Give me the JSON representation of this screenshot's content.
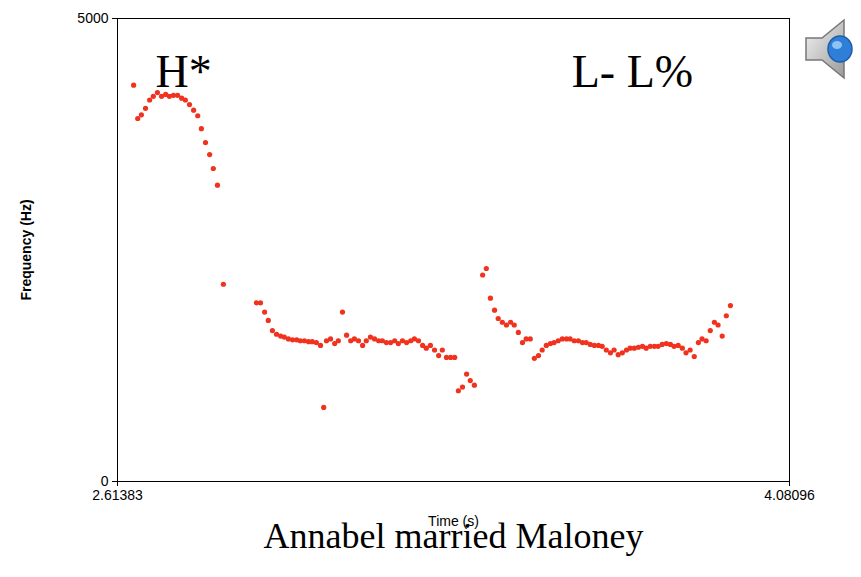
{
  "chart_data": {
    "type": "scatter",
    "x_label": "Time (s)",
    "y_label": "Frequency (Hz)",
    "caption": "Annabel married Maloney",
    "xlim": [
      2.61383,
      4.08096
    ],
    "xticks": [
      2.61383,
      4.08096
    ],
    "ylim": [
      0,
      5000
    ],
    "yticks": [
      0,
      5000
    ],
    "color": "#f0321e",
    "marker": "circle",
    "annotations": [
      {
        "text": "H*",
        "x": 2.758,
        "y": 4420
      },
      {
        "text": "L- L%",
        "x": 3.738,
        "y": 4420
      }
    ],
    "x": [
      2.649,
      2.658,
      2.666,
      2.675,
      2.684,
      2.692,
      2.701,
      2.71,
      2.719,
      2.727,
      2.736,
      2.745,
      2.754,
      2.762,
      2.771,
      2.78,
      2.789,
      2.797,
      2.806,
      2.815,
      2.823,
      2.832,
      2.845,
      2.917,
      2.926,
      2.935,
      2.943,
      2.952,
      2.961,
      2.97,
      2.978,
      2.987,
      2.996,
      3.005,
      3.013,
      3.022,
      3.031,
      3.039,
      3.048,
      3.057,
      3.064,
      3.07,
      3.079,
      3.088,
      3.096,
      3.105,
      3.114,
      3.123,
      3.131,
      3.14,
      3.149,
      3.157,
      3.166,
      3.175,
      3.184,
      3.192,
      3.201,
      3.21,
      3.219,
      3.227,
      3.236,
      3.245,
      3.254,
      3.262,
      3.271,
      3.28,
      3.288,
      3.297,
      3.306,
      3.315,
      3.323,
      3.332,
      3.341,
      3.35,
      3.358,
      3.367,
      3.376,
      3.384,
      3.393,
      3.411,
      3.419,
      3.428,
      3.437,
      3.445,
      3.454,
      3.463,
      3.472,
      3.48,
      3.489,
      3.498,
      3.506,
      3.515,
      3.524,
      3.533,
      3.541,
      3.55,
      3.559,
      3.567,
      3.576,
      3.585,
      3.594,
      3.602,
      3.611,
      3.62,
      3.629,
      3.637,
      3.646,
      3.655,
      3.664,
      3.672,
      3.681,
      3.69,
      3.698,
      3.707,
      3.716,
      3.725,
      3.733,
      3.742,
      3.751,
      3.76,
      3.768,
      3.777,
      3.786,
      3.794,
      3.803,
      3.812,
      3.821,
      3.829,
      3.838,
      3.847,
      3.855,
      3.864,
      3.873,
      3.882,
      3.89,
      3.899,
      3.908,
      3.917,
      3.925,
      3.934,
      3.943,
      3.952
    ],
    "values": [
      4280,
      3920,
      3960,
      4030,
      4120,
      4160,
      4200,
      4160,
      4180,
      4160,
      4170,
      4170,
      4140,
      4120,
      4070,
      4010,
      3950,
      3810,
      3660,
      3530,
      3380,
      3200,
      2130,
      1930,
      1930,
      1830,
      1740,
      1630,
      1590,
      1570,
      1560,
      1540,
      1530,
      1530,
      1520,
      1520,
      1510,
      1510,
      1500,
      1470,
      800,
      1520,
      1540,
      1490,
      1520,
      1830,
      1580,
      1520,
      1540,
      1520,
      1470,
      1520,
      1560,
      1540,
      1520,
      1520,
      1500,
      1500,
      1520,
      1490,
      1520,
      1500,
      1520,
      1540,
      1520,
      1470,
      1440,
      1470,
      1420,
      1360,
      1420,
      1340,
      1340,
      1340,
      980,
      1020,
      1160,
      1090,
      1040,
      2230,
      2300,
      1980,
      1850,
      1760,
      1720,
      1690,
      1720,
      1690,
      1610,
      1500,
      1540,
      1540,
      1330,
      1360,
      1420,
      1470,
      1490,
      1500,
      1520,
      1540,
      1540,
      1540,
      1520,
      1520,
      1500,
      1500,
      1480,
      1470,
      1470,
      1460,
      1420,
      1390,
      1420,
      1370,
      1390,
      1420,
      1440,
      1440,
      1450,
      1460,
      1440,
      1460,
      1460,
      1460,
      1480,
      1490,
      1480,
      1460,
      1470,
      1440,
      1390,
      1420,
      1350,
      1500,
      1540,
      1520,
      1630,
      1720,
      1690,
      1570,
      1790,
      1900
    ]
  }
}
